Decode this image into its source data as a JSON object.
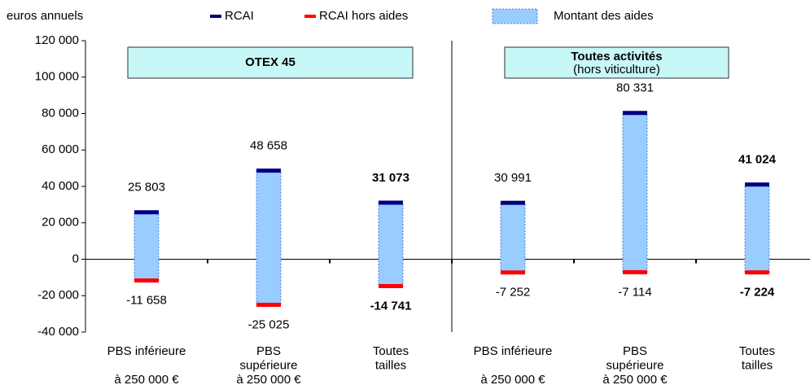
{
  "chart_data": {
    "type": "floating-bar",
    "y_label": "euros annuels",
    "panels": [
      {
        "title": "OTEX 45"
      },
      {
        "title": "Toutes activités",
        "subtitle": "(hors viticulture)"
      }
    ],
    "categories": [
      [
        "PBS inférieure",
        "à 250 000 €"
      ],
      [
        "PBS",
        "supérieure",
        "à 250 000 €"
      ],
      [
        "Toutes",
        "tailles"
      ],
      [
        "PBS inférieure",
        "à 250 000 €"
      ],
      [
        "PBS",
        "supérieure",
        "à 250 000 €"
      ],
      [
        "Toutes",
        "tailles"
      ]
    ],
    "series": [
      {
        "name": "RCAI",
        "color": "#000080",
        "values": [
          25803,
          48658,
          31073,
          30991,
          80331,
          41024
        ],
        "value_labels": [
          "25 803",
          "48 658",
          "31 073",
          "30 991",
          "80 331",
          "41 024"
        ]
      },
      {
        "name": "RCAI hors aides",
        "color": "#ff0000",
        "values": [
          -11658,
          -25025,
          -14741,
          -7252,
          -7114,
          -7224
        ],
        "value_labels": [
          "-11 658",
          "-25 025",
          "-14 741",
          "-7 252",
          "-7 114",
          "-7 224"
        ]
      },
      {
        "name": "Montant des aides",
        "color": "#99ccff",
        "values": [
          37461,
          73683,
          45814,
          38243,
          87445,
          48248
        ]
      }
    ],
    "bold_labels": [
      false,
      false,
      true,
      false,
      false,
      true
    ],
    "ylim": [
      -40000,
      120000
    ],
    "yticks": [
      {
        "value": -40000,
        "label": "-40 000"
      },
      {
        "value": -20000,
        "label": "-20 000"
      },
      0,
      {
        "value": 20000,
        "label": "20 000"
      },
      {
        "value": 40000,
        "label": "40 000"
      },
      {
        "value": 60000,
        "label": "60 000"
      },
      {
        "value": 80000,
        "label": "80 000"
      },
      {
        "value": 100000,
        "label": "100 000"
      },
      {
        "value": 120000,
        "label": "120 000"
      }
    ]
  }
}
